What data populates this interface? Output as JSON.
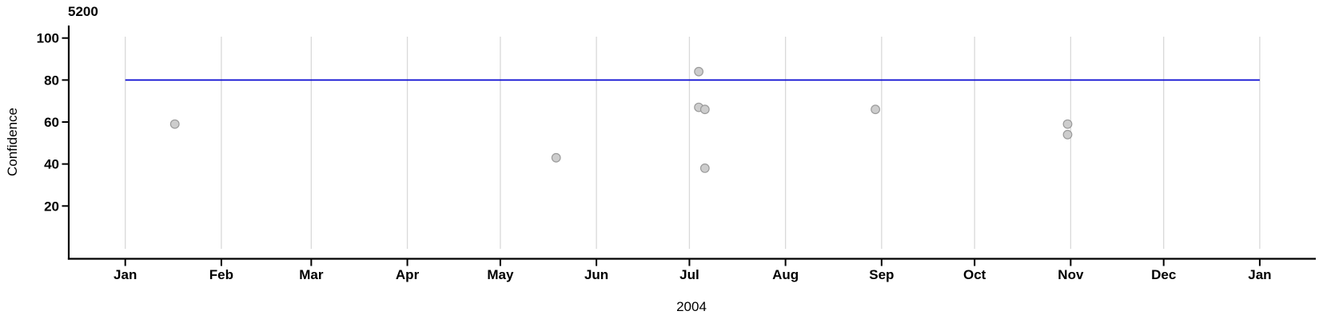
{
  "chart_data": {
    "type": "scatter",
    "title": "5200",
    "ylabel": "Confidence",
    "x_year_label": "2004",
    "x_tick_labels": [
      "Jan",
      "Feb",
      "Mar",
      "Apr",
      "May",
      "Jun",
      "Jul",
      "Aug",
      "Sep",
      "Oct",
      "Nov",
      "Dec",
      "Jan"
    ],
    "y_ticks": [
      20,
      40,
      60,
      80,
      100
    ],
    "x_range": [
      "2004-01-01",
      "2005-01-01"
    ],
    "ylim": [
      0,
      101
    ],
    "grid": "vertical-month-gridlines",
    "legend": "none",
    "reference_line": {
      "value": 80
    },
    "points": [
      {
        "date": "2004-01-17",
        "value": 59
      },
      {
        "date": "2004-05-19",
        "value": 43
      },
      {
        "date": "2004-07-04",
        "value": 84
      },
      {
        "date": "2004-07-04",
        "value": 67
      },
      {
        "date": "2004-07-06",
        "value": 66
      },
      {
        "date": "2004-07-06",
        "value": 38
      },
      {
        "date": "2004-08-30",
        "value": 66
      },
      {
        "date": "2004-10-31",
        "value": 59
      },
      {
        "date": "2004-10-31",
        "value": 54
      }
    ],
    "colors": {
      "point_fill": "#cdcdcd",
      "point_stroke": "#9b9b9b",
      "gridline": "#d9d9d9",
      "axis": "#000000",
      "text": "#000000",
      "reference_line": "#0a0ad2"
    }
  }
}
